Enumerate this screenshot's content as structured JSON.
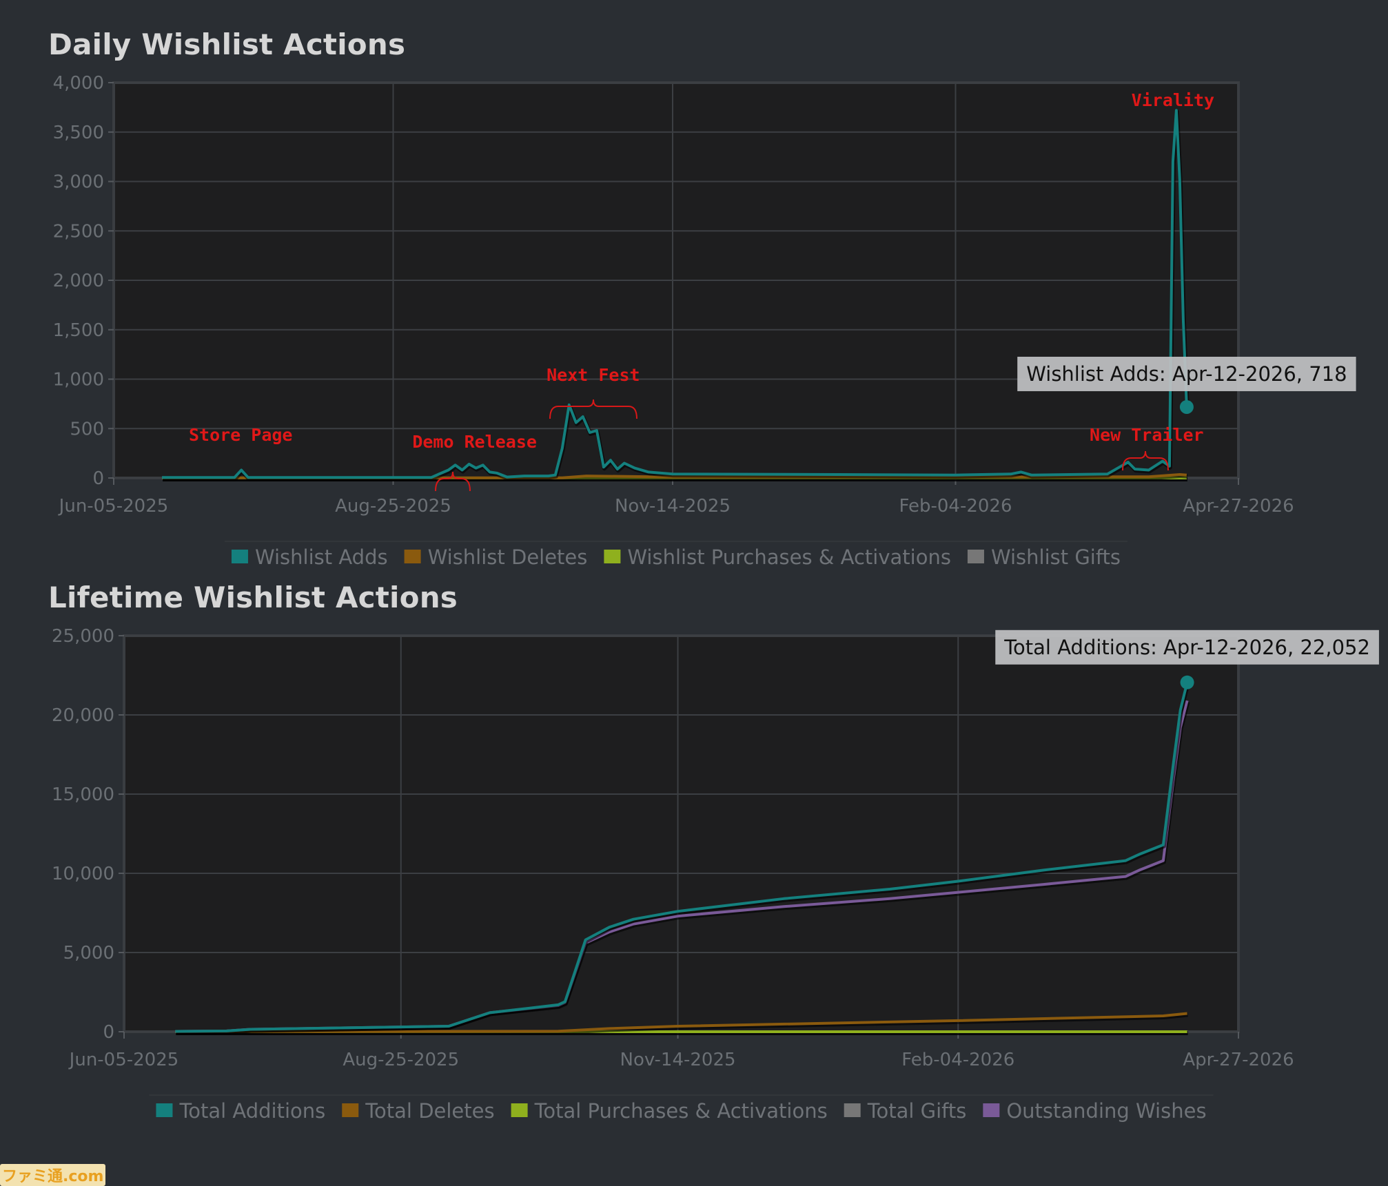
{
  "chart_data": [
    {
      "type": "line",
      "title": "Daily Wishlist Actions",
      "x_tick_labels": [
        "Jun-05-2025",
        "Aug-25-2025",
        "Nov-14-2025",
        "Feb-04-2026",
        "Apr-27-2026"
      ],
      "ylim": [
        0,
        4000
      ],
      "y_tick_labels": [
        "0",
        "500",
        "1,000",
        "1,500",
        "2,000",
        "2,500",
        "3,000",
        "3,500",
        "4,000"
      ],
      "grid": true,
      "legend_position": "bottom",
      "legend": [
        "Wishlist Adds",
        "Wishlist Deletes",
        "Wishlist Purchases & Activations",
        "Wishlist Gifts"
      ],
      "series": [
        {
          "name": "Wishlist Adds",
          "color": "#14807e",
          "points": [
            [
              "2025-06-19",
              5
            ],
            [
              "2025-07-10",
              5
            ],
            [
              "2025-07-12",
              80
            ],
            [
              "2025-07-14",
              5
            ],
            [
              "2025-09-05",
              5
            ],
            [
              "2025-09-10",
              80
            ],
            [
              "2025-09-12",
              130
            ],
            [
              "2025-09-14",
              80
            ],
            [
              "2025-09-16",
              140
            ],
            [
              "2025-09-18",
              100
            ],
            [
              "2025-09-20",
              130
            ],
            [
              "2025-09-22",
              60
            ],
            [
              "2025-09-24",
              50
            ],
            [
              "2025-09-27",
              10
            ],
            [
              "2025-10-02",
              20
            ],
            [
              "2025-10-09",
              20
            ],
            [
              "2025-10-11",
              30
            ],
            [
              "2025-10-13",
              300
            ],
            [
              "2025-10-15",
              740
            ],
            [
              "2025-10-17",
              560
            ],
            [
              "2025-10-19",
              620
            ],
            [
              "2025-10-21",
              460
            ],
            [
              "2025-10-23",
              480
            ],
            [
              "2025-10-25",
              110
            ],
            [
              "2025-10-27",
              180
            ],
            [
              "2025-10-29",
              90
            ],
            [
              "2025-10-31",
              150
            ],
            [
              "2025-11-03",
              100
            ],
            [
              "2025-11-07",
              60
            ],
            [
              "2025-11-14",
              40
            ],
            [
              "2026-01-01",
              35
            ],
            [
              "2026-02-04",
              30
            ],
            [
              "2026-02-20",
              40
            ],
            [
              "2026-02-23",
              60
            ],
            [
              "2026-02-26",
              30
            ],
            [
              "2026-03-20",
              40
            ],
            [
              "2026-03-24",
              120
            ],
            [
              "2026-03-26",
              160
            ],
            [
              "2026-03-28",
              90
            ],
            [
              "2026-04-01",
              80
            ],
            [
              "2026-04-05",
              170
            ],
            [
              "2026-04-07",
              120
            ],
            [
              "2026-04-08",
              3200
            ],
            [
              "2026-04-09",
              3720
            ],
            [
              "2026-04-10",
              3000
            ],
            [
              "2026-04-11",
              1600
            ],
            [
              "2026-04-12",
              718
            ]
          ]
        },
        {
          "name": "Wishlist Deletes",
          "color": "#8a5a0e",
          "points": [
            [
              "2025-06-19",
              2
            ],
            [
              "2025-10-13",
              2
            ],
            [
              "2025-10-20",
              20
            ],
            [
              "2025-11-14",
              10
            ],
            [
              "2026-04-01",
              12
            ],
            [
              "2026-04-10",
              35
            ],
            [
              "2026-04-12",
              30
            ]
          ]
        },
        {
          "name": "Wishlist Purchases & Activations",
          "color": "#8fb01e",
          "points": [
            [
              "2025-06-19",
              0
            ],
            [
              "2026-04-12",
              0
            ]
          ]
        },
        {
          "name": "Wishlist Gifts",
          "color": "#777777",
          "points": [
            [
              "2025-06-19",
              0
            ],
            [
              "2026-04-12",
              0
            ]
          ]
        }
      ],
      "annotations": [
        {
          "text": "Store Page",
          "date": "2025-07-12"
        },
        {
          "text": "Demo Release",
          "date": "2025-09-16"
        },
        {
          "text": "Next Fest",
          "date": "2025-10-22"
        },
        {
          "text": "New Trailer",
          "date": "2026-03-31"
        },
        {
          "text": "Virality",
          "date": "2026-04-08"
        }
      ],
      "tooltip": {
        "text": "Wishlist Adds: Apr-12-2026, 718",
        "date": "2026-04-12",
        "value": 718
      }
    },
    {
      "type": "line",
      "title": "Lifetime Wishlist Actions",
      "x_tick_labels": [
        "Jun-05-2025",
        "Aug-25-2025",
        "Nov-14-2025",
        "Feb-04-2026",
        "Apr-27-2026"
      ],
      "ylim": [
        0,
        25000
      ],
      "y_tick_labels": [
        "0",
        "5,000",
        "10,000",
        "15,000",
        "20,000",
        "25,000"
      ],
      "grid": true,
      "legend_position": "bottom",
      "legend": [
        "Total Additions",
        "Total Deletes",
        "Total Purchases & Activations",
        "Total Gifts",
        "Outstanding Wishes"
      ],
      "series": [
        {
          "name": "Total Additions",
          "color": "#14807e",
          "points": [
            [
              "2025-06-20",
              20
            ],
            [
              "2025-07-05",
              50
            ],
            [
              "2025-07-12",
              150
            ],
            [
              "2025-08-25",
              300
            ],
            [
              "2025-09-08",
              350
            ],
            [
              "2025-09-20",
              1200
            ],
            [
              "2025-10-10",
              1700
            ],
            [
              "2025-10-12",
              1900
            ],
            [
              "2025-10-18",
              5800
            ],
            [
              "2025-10-25",
              6600
            ],
            [
              "2025-11-01",
              7100
            ],
            [
              "2025-11-14",
              7600
            ],
            [
              "2025-12-15",
              8400
            ],
            [
              "2026-01-15",
              9000
            ],
            [
              "2026-02-04",
              9500
            ],
            [
              "2026-03-01",
              10200
            ],
            [
              "2026-03-25",
              10800
            ],
            [
              "2026-03-29",
              11200
            ],
            [
              "2026-04-05",
              11800
            ],
            [
              "2026-04-08",
              17000
            ],
            [
              "2026-04-10",
              20300
            ],
            [
              "2026-04-12",
              22052
            ]
          ]
        },
        {
          "name": "Outstanding Wishes",
          "color": "#7a5a98",
          "points": [
            [
              "2025-06-20",
              20
            ],
            [
              "2025-07-05",
              50
            ],
            [
              "2025-07-12",
              150
            ],
            [
              "2025-08-25",
              300
            ],
            [
              "2025-09-08",
              350
            ],
            [
              "2025-09-20",
              1200
            ],
            [
              "2025-10-10",
              1650
            ],
            [
              "2025-10-12",
              1850
            ],
            [
              "2025-10-18",
              5600
            ],
            [
              "2025-10-25",
              6300
            ],
            [
              "2025-11-01",
              6800
            ],
            [
              "2025-11-14",
              7300
            ],
            [
              "2025-12-15",
              7900
            ],
            [
              "2026-01-15",
              8400
            ],
            [
              "2026-02-04",
              8800
            ],
            [
              "2026-03-01",
              9300
            ],
            [
              "2026-03-25",
              9800
            ],
            [
              "2026-03-29",
              10200
            ],
            [
              "2026-04-05",
              10800
            ],
            [
              "2026-04-08",
              16000
            ],
            [
              "2026-04-10",
              19200
            ],
            [
              "2026-04-12",
              20900
            ]
          ]
        },
        {
          "name": "Total Deletes",
          "color": "#8a5a0e",
          "points": [
            [
              "2025-06-20",
              0
            ],
            [
              "2025-10-10",
              30
            ],
            [
              "2025-10-25",
              200
            ],
            [
              "2025-11-14",
              350
            ],
            [
              "2026-02-04",
              700
            ],
            [
              "2026-04-05",
              1000
            ],
            [
              "2026-04-12",
              1150
            ]
          ]
        },
        {
          "name": "Total Purchases & Activations",
          "color": "#8fb01e",
          "points": [
            [
              "2025-06-20",
              0
            ],
            [
              "2026-04-12",
              0
            ]
          ]
        },
        {
          "name": "Total Gifts",
          "color": "#777777",
          "points": [
            [
              "2025-06-20",
              0
            ],
            [
              "2026-04-12",
              0
            ]
          ]
        }
      ],
      "tooltip": {
        "text": "Total Additions: Apr-12-2026, 22,052",
        "date": "2026-04-12",
        "value": 22052
      }
    }
  ],
  "watermark": "ファミ通.com"
}
